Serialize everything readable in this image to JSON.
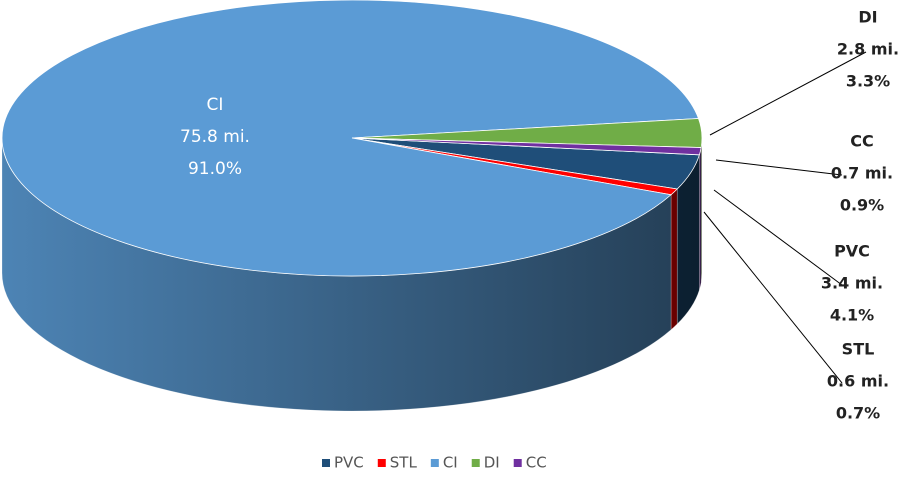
{
  "chart_data": {
    "type": "pie",
    "categories": [
      "PVC",
      "STL",
      "CI",
      "DI",
      "CC"
    ],
    "values": [
      3.4,
      0.6,
      75.8,
      2.8,
      0.7
    ],
    "value_labels": [
      "3.4 mi.",
      "0.6 mi.",
      "75.8 mi.",
      "2.8 mi.",
      "0.7 mi."
    ],
    "percents": [
      4.1,
      0.7,
      91.0,
      3.3,
      0.9
    ],
    "percent_labels": [
      "4.1%",
      "0.7%",
      "91.0%",
      "3.3%",
      "0.9%"
    ],
    "colors": [
      "#1f4e79",
      "#ff0000",
      "#5b9bd5",
      "#70ad47",
      "#7030a0"
    ],
    "legend": "bottom"
  }
}
